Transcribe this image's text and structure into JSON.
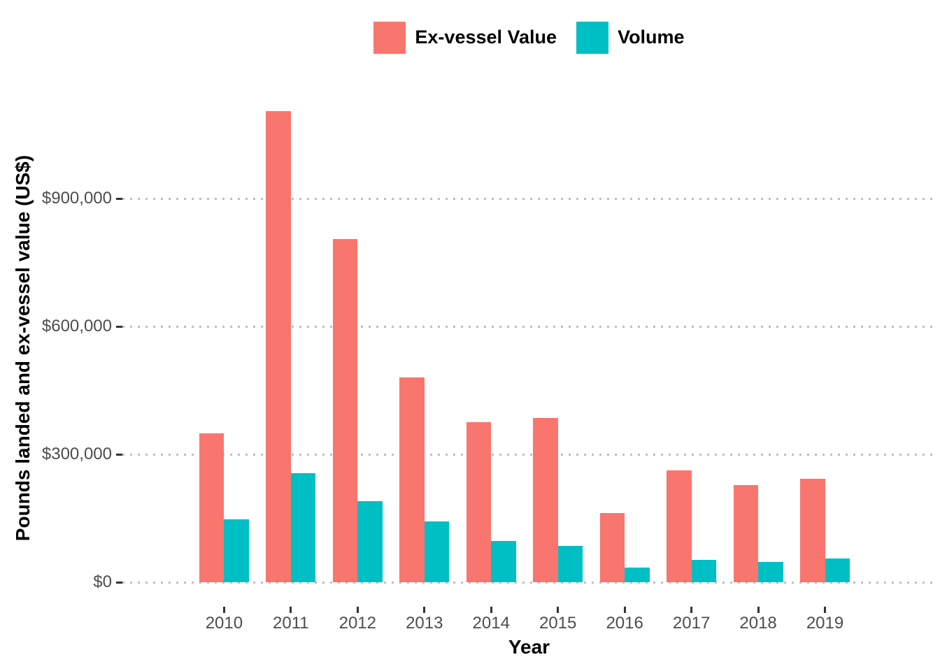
{
  "chart_data": {
    "type": "bar",
    "title": "",
    "xlabel": "Year",
    "ylabel": "Pounds landed and ex-vessel value (US$)",
    "categories": [
      "2010",
      "2011",
      "2012",
      "2013",
      "2014",
      "2015",
      "2016",
      "2017",
      "2018",
      "2019"
    ],
    "series": [
      {
        "name": "Ex-vessel Value",
        "color": "#F8766D",
        "values": [
          350000,
          1105000,
          805000,
          480000,
          375000,
          385000,
          162000,
          263000,
          228000,
          243000
        ]
      },
      {
        "name": "Volume",
        "color": "#00BFC4",
        "values": [
          148000,
          255000,
          190000,
          143000,
          97000,
          85000,
          35000,
          52000,
          48000,
          55000
        ]
      }
    ],
    "y_ticks": [
      {
        "value": 0,
        "label": "$0"
      },
      {
        "value": 300000,
        "label": "$300,000"
      },
      {
        "value": 600000,
        "label": "$600,000"
      },
      {
        "value": 900000,
        "label": "$900,000"
      }
    ],
    "ylim": [
      0,
      1160000
    ],
    "grid": {
      "style": "dotted",
      "color": "#BEBEBE",
      "orientation": "horizontal"
    },
    "legend_position": "top-center",
    "tick_color": "#333333",
    "axis_text_color": "#4D4D4D"
  }
}
